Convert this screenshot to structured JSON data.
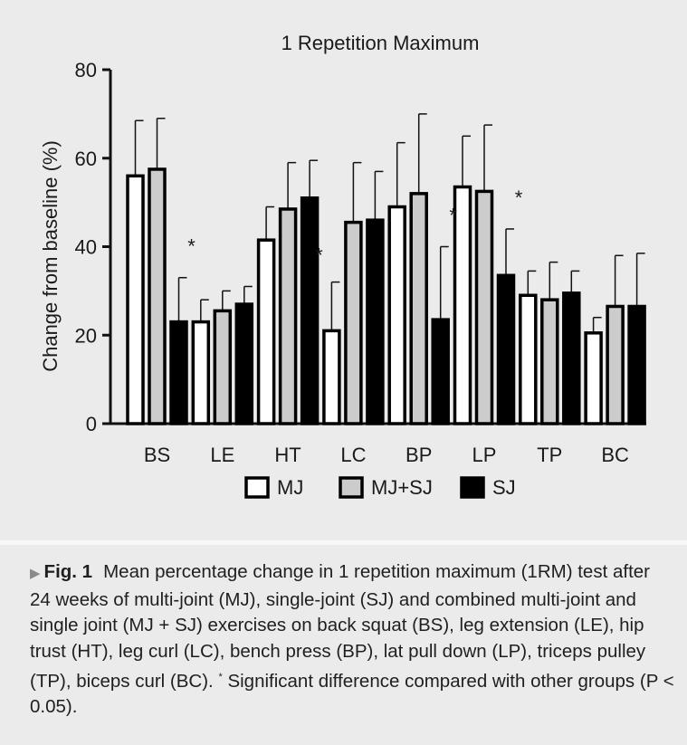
{
  "chart_data": {
    "type": "bar",
    "title": "1 Repetition Maximum",
    "xlabel": "",
    "ylabel": "Change from baseline (%)",
    "ylim": [
      0,
      80
    ],
    "yticks": [
      0,
      20,
      40,
      60,
      80
    ],
    "categories": [
      "BS",
      "LE",
      "HT",
      "LC",
      "BP",
      "LP",
      "TP",
      "BC"
    ],
    "series": [
      {
        "name": "MJ",
        "fill": "#ffffff",
        "values": [
          56,
          23,
          41.5,
          21,
          49,
          53.5,
          29,
          20.5
        ],
        "errors": [
          12.5,
          5,
          7.5,
          11,
          14.5,
          11.5,
          5.5,
          3.5
        ]
      },
      {
        "name": "MJ+SJ",
        "fill": "#cccccc",
        "values": [
          57.5,
          25.5,
          48.5,
          45.5,
          52,
          52.5,
          28,
          26.5
        ],
        "errors": [
          11.5,
          4.5,
          10.5,
          13.5,
          18,
          15,
          8.5,
          11.5
        ]
      },
      {
        "name": "SJ",
        "fill": "#000000",
        "values": [
          23,
          27,
          51,
          46,
          23.5,
          33.5,
          29.5,
          26.5
        ],
        "errors": [
          10,
          4,
          8.5,
          11,
          16.5,
          10.5,
          5,
          12
        ]
      }
    ],
    "annotations": [
      {
        "text": "*",
        "category": "BS",
        "series": "SJ",
        "y": 41
      },
      {
        "text": "*",
        "category": "LC",
        "series": "MJ",
        "y": 39
      },
      {
        "text": "*",
        "category": "BP",
        "series": "SJ",
        "y": 48
      },
      {
        "text": "*",
        "category": "LP",
        "series": "SJ",
        "y": 52
      }
    ],
    "legend": {
      "position": "bottom-center",
      "entries": [
        "MJ",
        "MJ+SJ",
        "SJ"
      ]
    }
  },
  "caption": {
    "marker": "▶",
    "label": "Fig. 1",
    "text": "Mean percentage change in 1 repetition maximum (1RM) test after 24 weeks of multi-joint (MJ), single-joint (SJ) and combined multi-joint and single joint (MJ + SJ) exercises on back squat (BS), leg extension (LE), hip trust (HT), leg curl (LC), bench press (BP), lat pull down (LP), triceps pulley (TP), biceps curl (BC).",
    "footnote_marker": "*",
    "footnote_text": "Significant difference compared with other groups (P < 0.05)."
  }
}
